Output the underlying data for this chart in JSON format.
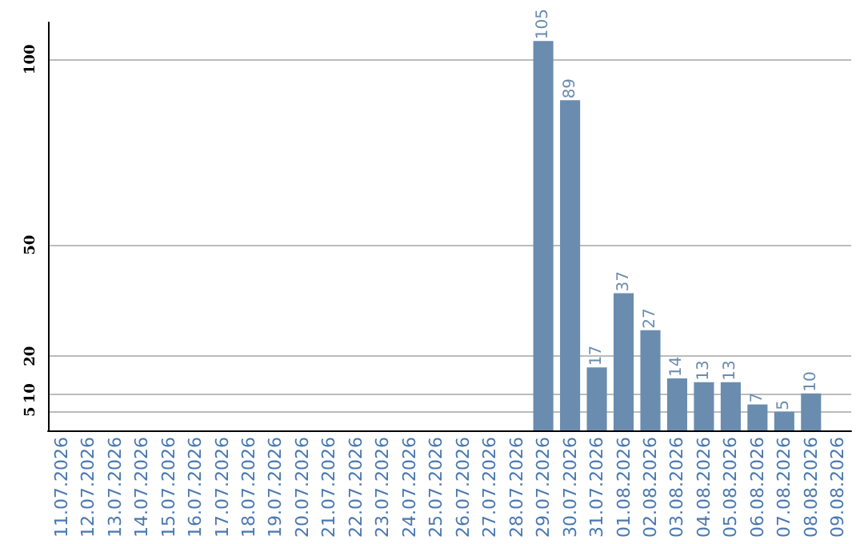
{
  "chart_data": {
    "type": "bar",
    "categories": [
      "11.07.2026",
      "12.07.2026",
      "13.07.2026",
      "14.07.2026",
      "15.07.2026",
      "16.07.2026",
      "17.07.2026",
      "18.07.2026",
      "19.07.2026",
      "20.07.2026",
      "21.07.2026",
      "22.07.2026",
      "23.07.2026",
      "24.07.2026",
      "25.07.2026",
      "26.07.2026",
      "27.07.2026",
      "28.07.2026",
      "29.07.2026",
      "30.07.2026",
      "31.07.2026",
      "01.08.2026",
      "02.08.2026",
      "03.08.2026",
      "04.08.2026",
      "05.08.2026",
      "06.08.2026",
      "07.08.2026",
      "08.08.2026",
      "09.08.2026"
    ],
    "values": [
      0,
      0,
      0,
      0,
      0,
      0,
      0,
      0,
      0,
      0,
      0,
      0,
      0,
      0,
      0,
      0,
      0,
      0,
      105,
      89,
      17,
      37,
      27,
      14,
      13,
      13,
      7,
      5,
      10,
      0
    ],
    "value_labels": [
      null,
      null,
      null,
      null,
      null,
      null,
      null,
      null,
      null,
      null,
      null,
      null,
      null,
      null,
      null,
      null,
      null,
      null,
      "105",
      "89",
      "17",
      "37",
      "27",
      "14",
      "13",
      "13",
      "7",
      "5",
      "10",
      null
    ],
    "color": "#6a8caf",
    "ylim": [
      0,
      110
    ],
    "yticks": [
      5,
      10,
      20,
      50,
      100
    ],
    "grid": "y"
  }
}
